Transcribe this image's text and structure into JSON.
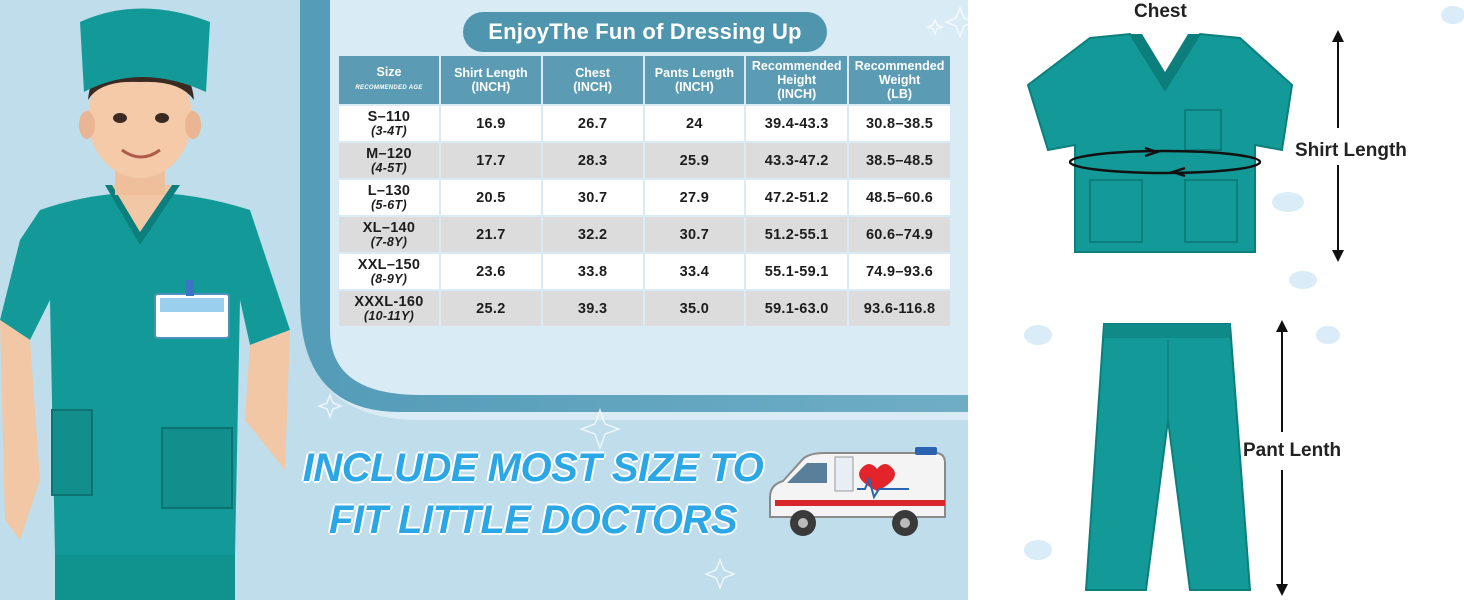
{
  "title": "EnjoyThe Fun of Dressing Up",
  "table": {
    "headers": [
      {
        "label": "Size",
        "sub": "RECOMMENDED AGE"
      },
      {
        "label": "Shirt Length\n(INCH)"
      },
      {
        "label": "Chest\n(INCH)"
      },
      {
        "label": "Pants Length\n(INCH)"
      },
      {
        "label": "Recommended\nHeight\n(INCH)"
      },
      {
        "label": "Recommended\nWeight\n(LB)"
      }
    ],
    "rows": [
      {
        "size": "S–110",
        "age": "(3-4T)",
        "shirt": "16.9",
        "chest": "26.7",
        "pants": "24",
        "height": "39.4-43.3",
        "weight": "30.8–38.5"
      },
      {
        "size": "M–120",
        "age": "(4-5T)",
        "shirt": "17.7",
        "chest": "28.3",
        "pants": "25.9",
        "height": "43.3-47.2",
        "weight": "38.5–48.5"
      },
      {
        "size": "L–130",
        "age": "(5-6T)",
        "shirt": "20.5",
        "chest": "30.7",
        "pants": "27.9",
        "height": "47.2-51.2",
        "weight": "48.5–60.6"
      },
      {
        "size": "XL–140",
        "age": "(7-8Y)",
        "shirt": "21.7",
        "chest": "32.2",
        "pants": "30.7",
        "height": "51.2-55.1",
        "weight": "60.6–74.9"
      },
      {
        "size": "XXL–150",
        "age": "(8-9Y)",
        "shirt": "23.6",
        "chest": "33.8",
        "pants": "33.4",
        "height": "55.1-59.1",
        "weight": "74.9–93.6"
      },
      {
        "size": "XXXL-160",
        "age": "(10-11Y)",
        "shirt": "25.2",
        "chest": "39.3",
        "pants": "35.0",
        "height": "59.1-63.0",
        "weight": "93.6-116.8"
      }
    ]
  },
  "slogan": {
    "line1": "INCLUDE MOST SIZE TO",
    "line2": "FIT LITTLE DOCTORS"
  },
  "diagram": {
    "chest": "Chest",
    "shirt_length": "Shirt Length",
    "pant_length": "Pant Lenth"
  },
  "colors": {
    "scrub": "#139a98",
    "scrub_dark": "#0c7f7d",
    "header": "#5b9cb4",
    "title_pill": "#4f95ad",
    "slogan": "#2aa7e4"
  }
}
